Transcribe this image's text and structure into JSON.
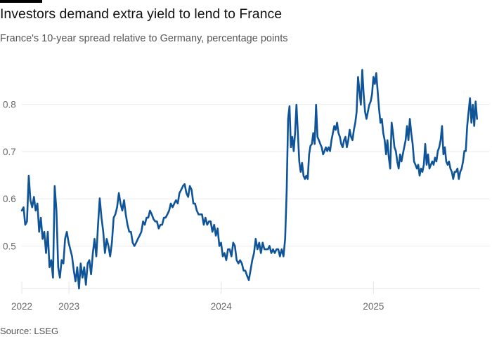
{
  "chart_data": {
    "type": "line",
    "title": "Investors demand extra yield to lend to France",
    "subtitle": "France's 10-year spread relative to Germany, percentage points",
    "source": "Source: LSEG",
    "xlabel": "",
    "ylabel": "",
    "xlim": [
      2022.69,
      2025.7
    ],
    "ylim": [
      0.41,
      0.89
    ],
    "yticks": [
      0.5,
      0.6,
      0.7,
      0.8
    ],
    "ytick_labels": [
      "0.5",
      "0.6",
      "0.7",
      "0.8"
    ],
    "xticks": [
      2022.69,
      2023,
      2024,
      2025
    ],
    "xtick_labels": [
      "2022",
      "2023",
      "2024",
      "2025"
    ],
    "grid": true,
    "line_color": "#0f5499",
    "series": [
      {
        "name": "France-Germany 10-year spread",
        "segments": [
          {
            "x_start": 2022.69,
            "x_end": 2024.42,
            "values": [
              0.575,
              0.582,
              0.545,
              0.552,
              0.649,
              0.597,
              0.582,
              0.604,
              0.575,
              0.59,
              0.53,
              0.56,
              0.515,
              0.53,
              0.485,
              0.53,
              0.455,
              0.47,
              0.433,
              0.627,
              0.575,
              0.455,
              0.433,
              0.47,
              0.463,
              0.515,
              0.53,
              0.507,
              0.493,
              0.478,
              0.448,
              0.425,
              0.455,
              0.41,
              0.463,
              0.433,
              0.455,
              0.418,
              0.463,
              0.47,
              0.44,
              0.485,
              0.515,
              0.478,
              0.545,
              0.601,
              0.56,
              0.53,
              0.485,
              0.515,
              0.5,
              0.478,
              0.507,
              0.56,
              0.567,
              0.582,
              0.612,
              0.59,
              0.575,
              0.597,
              0.567,
              0.545,
              0.53,
              0.53,
              0.507,
              0.5,
              0.507,
              0.515,
              0.522,
              0.53,
              0.552,
              0.545,
              0.56,
              0.56,
              0.575,
              0.567,
              0.557,
              0.552,
              0.552,
              0.537,
              0.545,
              0.545,
              0.56,
              0.56,
              0.567,
              0.575,
              0.59,
              0.582,
              0.59,
              0.597,
              0.59,
              0.612,
              0.619,
              0.627,
              0.631,
              0.612,
              0.604,
              0.627,
              0.619,
              0.59,
              0.59,
              0.575,
              0.567,
              0.567,
              0.567,
              0.545,
              0.56,
              0.545,
              0.552,
              0.552,
              0.53,
              0.545,
              0.522,
              0.537,
              0.5,
              0.507,
              0.478,
              0.485,
              0.47,
              0.493,
              0.493,
              0.478,
              0.507,
              0.5,
              0.47,
              0.463,
              0.47,
              0.463,
              0.448,
              0.448,
              0.437,
              0.428,
              0.448,
              0.47,
              0.485,
              0.515,
              0.493,
              0.507,
              0.485,
              0.507,
              0.493,
              0.493,
              0.493,
              0.5,
              0.485,
              0.493,
              0.485,
              0.493,
              0.493,
              0.478,
              0.493,
              0.478,
              0.515
            ]
          },
          {
            "x_start": 2024.43,
            "x_end": 2025.68,
            "values": [
              0.619,
              0.769,
              0.796,
              0.709,
              0.731,
              0.701,
              0.739,
              0.799,
              0.739,
              0.679,
              0.657,
              0.676,
              0.649,
              0.642,
              0.649,
              0.642,
              0.694,
              0.712,
              0.716,
              0.739,
              0.716,
              0.799,
              0.731,
              0.724,
              0.716,
              0.709,
              0.694,
              0.701,
              0.709,
              0.701,
              0.709,
              0.701,
              0.724,
              0.739,
              0.754,
              0.746,
              0.761,
              0.739,
              0.731,
              0.716,
              0.709,
              0.724,
              0.731,
              0.709,
              0.724,
              0.746,
              0.731,
              0.724,
              0.746,
              0.761,
              0.784,
              0.858,
              0.828,
              0.799,
              0.873,
              0.821,
              0.784,
              0.769,
              0.784,
              0.799,
              0.806,
              0.821,
              0.858,
              0.843,
              0.866,
              0.828,
              0.79,
              0.761,
              0.769,
              0.739,
              0.724,
              0.694,
              0.724,
              0.687,
              0.664,
              0.761,
              0.739,
              0.709,
              0.701,
              0.679,
              0.664,
              0.694,
              0.679,
              0.694,
              0.709,
              0.724,
              0.754,
              0.724,
              0.769,
              0.739,
              0.716,
              0.679,
              0.672,
              0.664,
              0.672,
              0.649,
              0.664,
              0.657,
              0.672,
              0.716,
              0.672,
              0.694,
              0.664,
              0.672,
              0.679,
              0.672,
              0.687,
              0.679,
              0.701,
              0.709,
              0.724,
              0.754,
              0.694,
              0.709,
              0.679,
              0.672,
              0.679,
              0.664,
              0.657,
              0.642,
              0.657,
              0.657,
              0.664,
              0.642,
              0.657,
              0.664,
              0.679,
              0.701,
              0.701,
              0.754,
              0.784,
              0.813,
              0.761,
              0.799,
              0.754,
              0.806,
              0.769
            ]
          }
        ]
      }
    ]
  }
}
